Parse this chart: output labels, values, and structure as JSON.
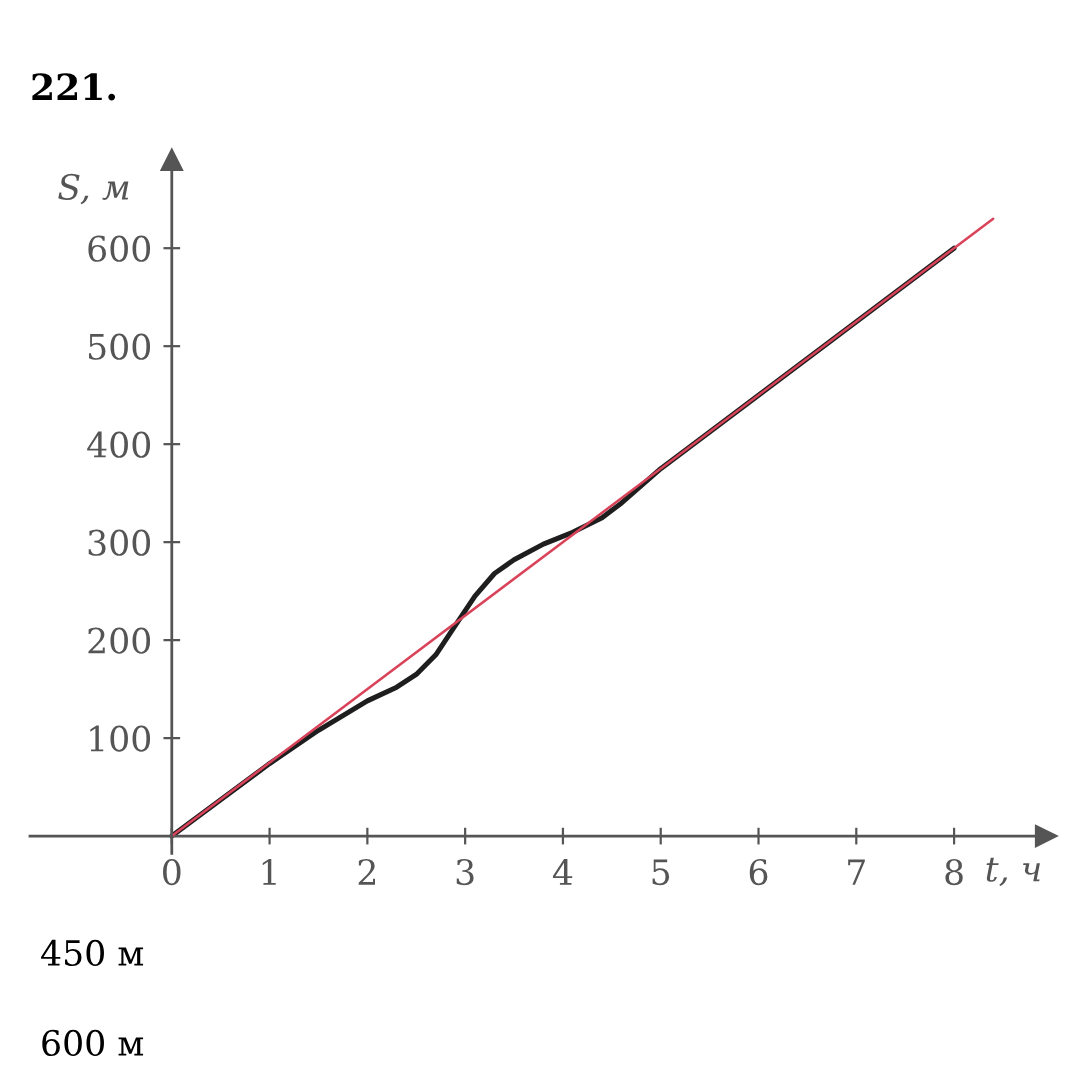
{
  "chart_data": {
    "type": "line",
    "title": "221.",
    "xlabel": "t, ч",
    "ylabel": "S, м",
    "series": [
      {
        "color": "#1e1e1e",
        "x": [
          0,
          0.5,
          1,
          1.5,
          2,
          2.3,
          2.5,
          2.7,
          2.9,
          3.1,
          3.3,
          3.5,
          3.8,
          4.1,
          4.4,
          4.6,
          5,
          6,
          7,
          8
        ],
        "values": [
          0,
          37,
          74,
          108,
          138,
          152,
          165,
          185,
          215,
          245,
          268,
          282,
          298,
          310,
          325,
          340,
          375,
          450,
          525,
          600
        ]
      },
      {
        "color": "#d9435a",
        "x": [
          0,
          8.4
        ],
        "values": [
          0,
          630
        ]
      }
    ],
    "xlim": [
      -1.45,
      8.94
    ],
    "ylim": [
      -55,
      690
    ],
    "xticks": [
      0,
      1,
      2,
      3,
      4,
      5,
      6,
      7,
      8
    ],
    "yticks": [
      100,
      200,
      300,
      400,
      500,
      600
    ],
    "annotations": [
      "450 м",
      "600 м"
    ]
  }
}
